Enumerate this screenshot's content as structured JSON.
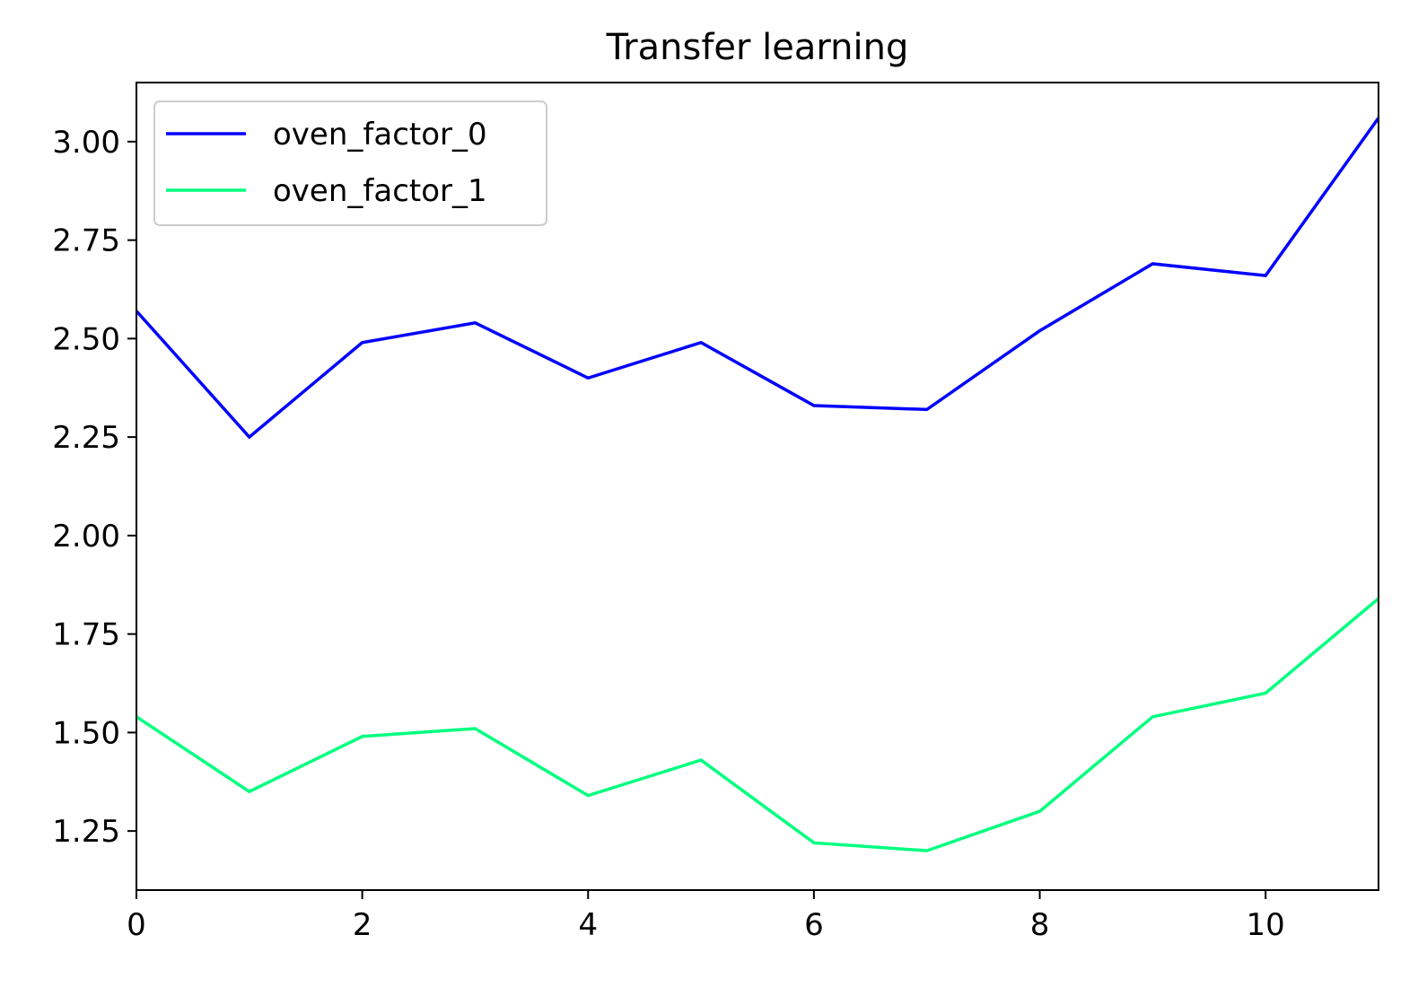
{
  "chart_data": {
    "type": "line",
    "title": "Transfer learning",
    "xlabel": "",
    "ylabel": "",
    "x": [
      0,
      1,
      2,
      3,
      4,
      5,
      6,
      7,
      8,
      9,
      10,
      11
    ],
    "xlim": [
      0,
      11
    ],
    "ylim": [
      1.1,
      3.15
    ],
    "x_ticks": [
      0,
      2,
      4,
      6,
      8,
      10
    ],
    "x_tick_labels": [
      "0",
      "2",
      "4",
      "6",
      "8",
      "10"
    ],
    "y_ticks": [
      1.25,
      1.5,
      1.75,
      2.0,
      2.25,
      2.5,
      2.75,
      3.0
    ],
    "y_tick_labels": [
      "1.25",
      "1.50",
      "1.75",
      "2.00",
      "2.25",
      "2.50",
      "2.75",
      "3.00"
    ],
    "grid": false,
    "legend_position": "top-left",
    "series": [
      {
        "name": "oven_factor_0",
        "color": "#0000ff",
        "values": [
          2.57,
          2.25,
          2.49,
          2.54,
          2.4,
          2.49,
          2.33,
          2.32,
          2.52,
          2.69,
          2.66,
          3.06
        ]
      },
      {
        "name": "oven_factor_1",
        "color": "#00ff7f",
        "values": [
          1.54,
          1.35,
          1.49,
          1.51,
          1.34,
          1.43,
          1.22,
          1.2,
          1.3,
          1.54,
          1.6,
          1.84
        ]
      }
    ]
  }
}
